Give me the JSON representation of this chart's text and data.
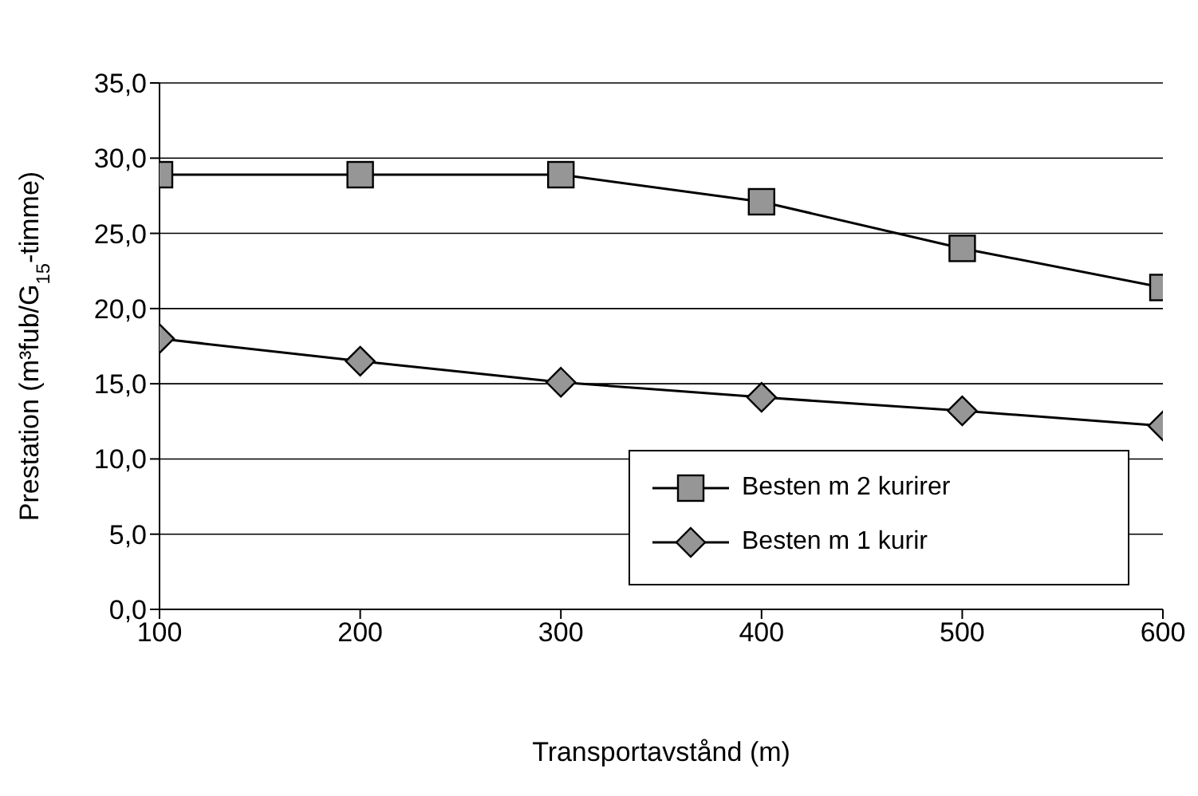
{
  "chart_data": {
    "type": "line",
    "xlabel": "Transportavstånd (m)",
    "ylabel": "Prestation (m³fub/G$_{15}$-timme)",
    "x": [
      100,
      200,
      300,
      400,
      500,
      600
    ],
    "series": [
      {
        "name": "Besten m 2 kurirer",
        "color": "#000000",
        "marker": "square",
        "values": [
          28.9,
          28.9,
          28.9,
          27.1,
          24.0,
          21.4
        ]
      },
      {
        "name": "Besten m 1 kurir",
        "color": "#000000",
        "marker": "diamond",
        "values": [
          18.0,
          16.5,
          15.1,
          14.1,
          13.2,
          12.2
        ]
      }
    ],
    "xlim": [
      100,
      600
    ],
    "xticks": [
      100,
      200,
      300,
      400,
      500,
      600
    ],
    "ylim": [
      0,
      35
    ],
    "yticks": [
      {
        "value": 0,
        "label": "0,0"
      },
      {
        "value": 5,
        "label": "5,0"
      },
      {
        "value": 10,
        "label": "10,0"
      },
      {
        "value": 15,
        "label": "15,0"
      },
      {
        "value": 20,
        "label": "20,0"
      },
      {
        "value": 25,
        "label": "25,0"
      },
      {
        "value": 30,
        "label": "30,0"
      },
      {
        "value": 35,
        "label": "35,0"
      }
    ],
    "grid": "y",
    "legend": "bottom right",
    "line_style": "solid"
  }
}
